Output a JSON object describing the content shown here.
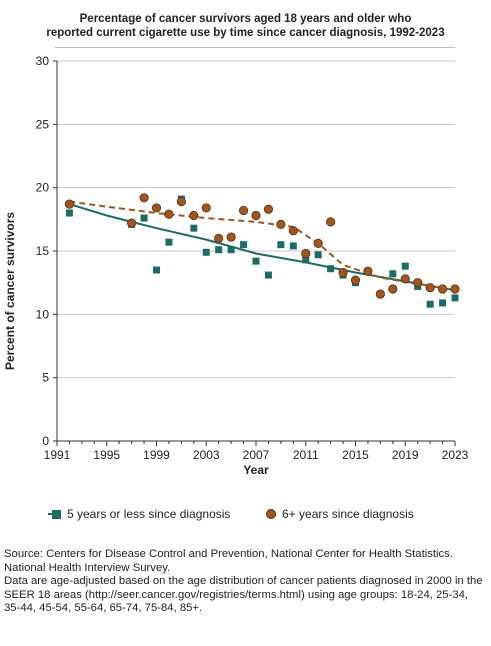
{
  "title_line1": "Percentage of cancer survivors aged 18 years and older who",
  "title_line2": "reported current cigarette use by time since cancer diagnosis, 1992-2023",
  "colors": {
    "series1": "#1d6b64",
    "series2": "#a0561f",
    "grid": "#c8c8c8",
    "axis": "#333333"
  },
  "chart_data": {
    "type": "scatter",
    "xlabel": "Year",
    "ylabel": "Percent of cancer survivors",
    "xlim": [
      1991,
      2023
    ],
    "ylim": [
      0,
      30
    ],
    "xticks": [
      1991,
      1995,
      1999,
      2003,
      2007,
      2011,
      2015,
      2019,
      2023
    ],
    "yticks": [
      0,
      5,
      10,
      15,
      20,
      25,
      30
    ],
    "grid": "horizontal",
    "legend_position": "bottom",
    "series": [
      {
        "name": "5 years or less since diagnosis",
        "marker": "square",
        "color": "#1d6b64",
        "trend_style": "solid",
        "points": [
          [
            1992,
            18.0
          ],
          [
            1997,
            17.1
          ],
          [
            1998,
            17.6
          ],
          [
            1999,
            13.5
          ],
          [
            2000,
            15.7
          ],
          [
            2001,
            19.1
          ],
          [
            2002,
            16.8
          ],
          [
            2003,
            14.9
          ],
          [
            2004,
            15.1
          ],
          [
            2005,
            15.1
          ],
          [
            2006,
            15.5
          ],
          [
            2007,
            14.2
          ],
          [
            2008,
            13.1
          ],
          [
            2009,
            15.5
          ],
          [
            2010,
            15.4
          ],
          [
            2011,
            14.3
          ],
          [
            2012,
            14.7
          ],
          [
            2013,
            13.6
          ],
          [
            2014,
            13.1
          ],
          [
            2015,
            12.5
          ],
          [
            2016,
            13.4
          ],
          [
            2017,
            11.6
          ],
          [
            2018,
            13.2
          ],
          [
            2019,
            13.8
          ],
          [
            2020,
            12.2
          ],
          [
            2021,
            10.8
          ],
          [
            2022,
            10.9
          ],
          [
            2023,
            11.3
          ]
        ],
        "trend": [
          [
            1992,
            18.7
          ],
          [
            1995,
            17.8
          ],
          [
            1999,
            16.8
          ],
          [
            2003,
            15.9
          ],
          [
            2007,
            14.8
          ],
          [
            2011,
            14.1
          ],
          [
            2015,
            13.3
          ],
          [
            2019,
            12.6
          ],
          [
            2023,
            11.9
          ]
        ]
      },
      {
        "name": "6+ years since diagnosis",
        "marker": "circle",
        "color": "#a0561f",
        "trend_style": "dashed",
        "points": [
          [
            1992,
            18.7
          ],
          [
            1997,
            17.2
          ],
          [
            1998,
            19.2
          ],
          [
            1999,
            18.4
          ],
          [
            2000,
            17.9
          ],
          [
            2001,
            18.9
          ],
          [
            2002,
            17.8
          ],
          [
            2003,
            18.4
          ],
          [
            2004,
            16.0
          ],
          [
            2005,
            16.1
          ],
          [
            2006,
            18.2
          ],
          [
            2007,
            17.8
          ],
          [
            2008,
            18.3
          ],
          [
            2009,
            17.1
          ],
          [
            2010,
            16.6
          ],
          [
            2011,
            14.8
          ],
          [
            2012,
            15.6
          ],
          [
            2013,
            17.3
          ],
          [
            2014,
            13.3
          ],
          [
            2015,
            12.7
          ],
          [
            2016,
            13.4
          ],
          [
            2017,
            11.6
          ],
          [
            2018,
            12.0
          ],
          [
            2019,
            12.8
          ],
          [
            2020,
            12.5
          ],
          [
            2021,
            12.1
          ],
          [
            2022,
            12.0
          ],
          [
            2023,
            12.0
          ]
        ],
        "trend": [
          [
            1992,
            18.9
          ],
          [
            1995,
            18.5
          ],
          [
            1999,
            18.0
          ],
          [
            2003,
            17.6
          ],
          [
            2007,
            17.3
          ],
          [
            2010,
            16.9
          ],
          [
            2012,
            15.6
          ],
          [
            2014,
            13.9
          ],
          [
            2017,
            12.9
          ],
          [
            2020,
            12.4
          ],
          [
            2023,
            11.9
          ]
        ]
      }
    ]
  },
  "source": {
    "line1": "Source: Centers for Disease Control and Prevention, National Center for Health Statistics. National Health Interview Survey.",
    "line2": "Data are age-adjusted based on the age distribution of cancer patients diagnosed in 2000 in the SEER 18 areas (http://seer.cancer.gov/registries/terms.html) using age groups: 18-24, 25-34, 35-44, 45-54, 55-64, 65-74, 75-84, 85+."
  }
}
